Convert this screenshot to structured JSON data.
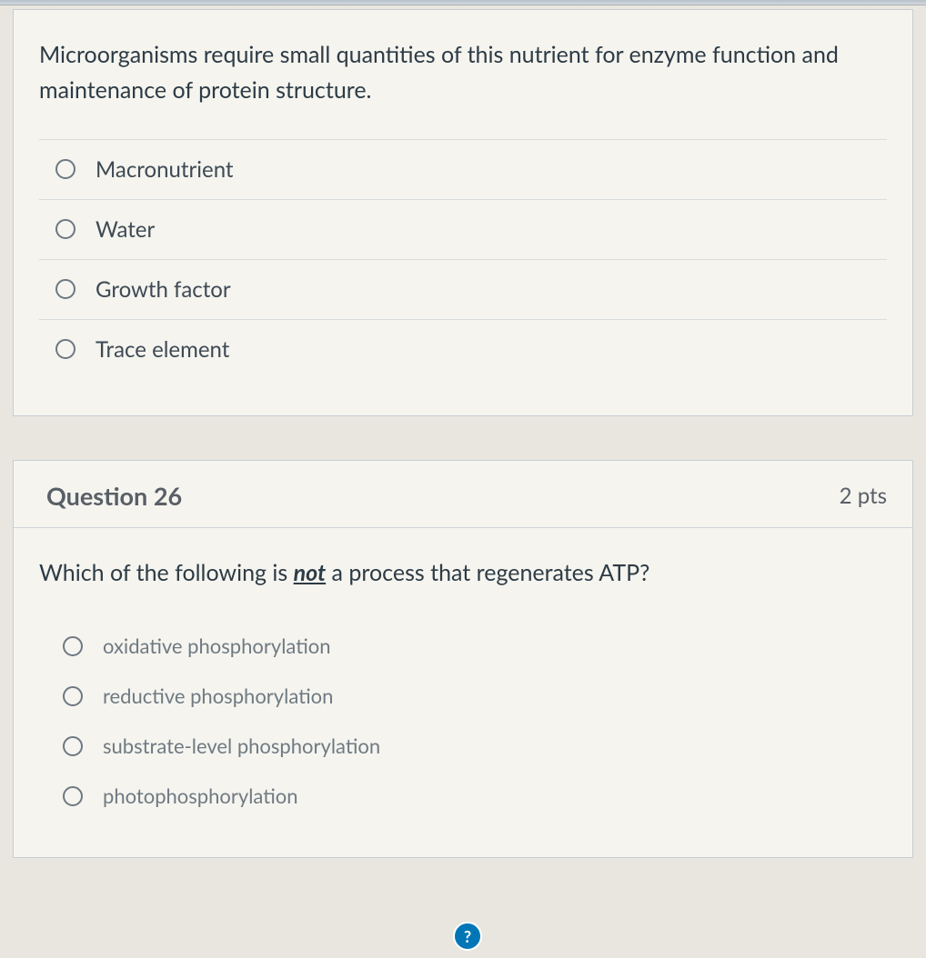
{
  "question25": {
    "prompt": "Microorganisms require small quantities of this nutrient for enzyme function and maintenance of protein structure.",
    "options": [
      {
        "label": "Macronutrient"
      },
      {
        "label": "Water"
      },
      {
        "label": "Growth factor"
      },
      {
        "label": "Trace element"
      }
    ]
  },
  "question26": {
    "title": "Question 26",
    "points": "2 pts",
    "prompt_prefix": "Which of the following is ",
    "prompt_emphasis": "not",
    "prompt_suffix": " a process that regenerates ATP?",
    "options": [
      {
        "label": "oxidative phosphorylation"
      },
      {
        "label": "reductive phosphorylation"
      },
      {
        "label": "substrate-level phosphorylation"
      },
      {
        "label": "photophosphorylation"
      }
    ]
  },
  "help": {
    "label": "?"
  }
}
